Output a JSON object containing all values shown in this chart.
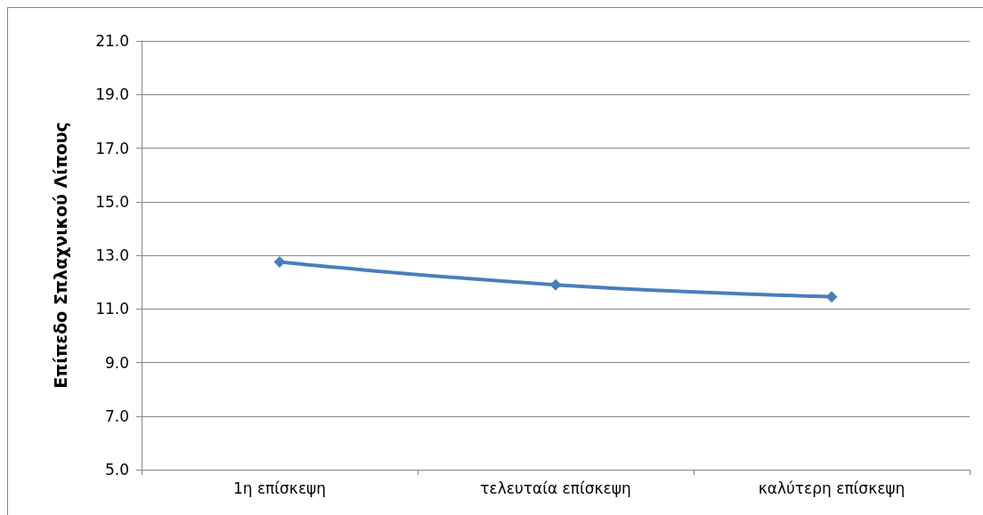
{
  "chart_data": {
    "type": "line",
    "ylabel": "Επίπεδο Σπλαχνικού Λίπους",
    "categories": [
      "1η επίσκεψη",
      "τελευταία επίσκεψη",
      "καλύτερη επίσκεψη"
    ],
    "series": [
      {
        "color": "#4a7ebb",
        "values": [
          12.75,
          11.9,
          11.45
        ]
      }
    ],
    "ylim": [
      5,
      21
    ],
    "yticks": [
      {
        "value": 5,
        "label": "5.0"
      },
      {
        "value": 7,
        "label": "7.0"
      },
      {
        "value": 9,
        "label": "9.0"
      },
      {
        "value": 11,
        "label": "11.0"
      },
      {
        "value": 13,
        "label": "13.0"
      },
      {
        "value": 15,
        "label": "15.0"
      },
      {
        "value": 17,
        "label": "17.0"
      },
      {
        "value": 19,
        "label": "19.0"
      },
      {
        "value": 21,
        "label": "21.0"
      }
    ],
    "grid": "y",
    "marker": "diamond",
    "line_style": "solid"
  }
}
